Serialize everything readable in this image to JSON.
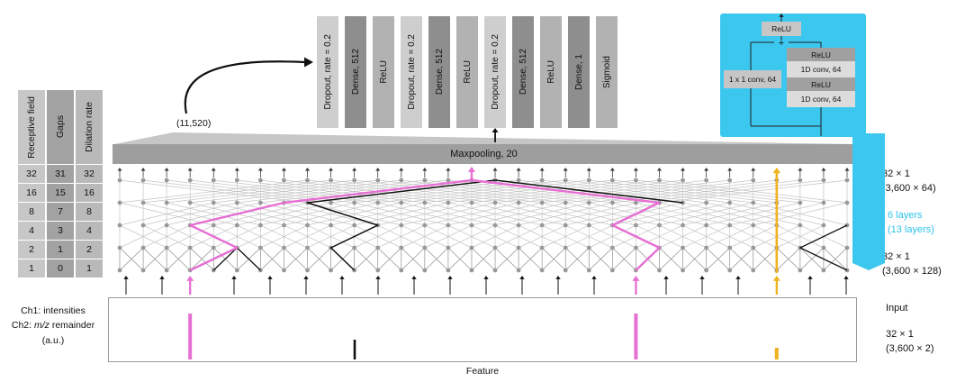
{
  "colors": {
    "cyan": "#3cc7ef",
    "magenta": "#e66fd3",
    "yellow": "#eeb31e",
    "mesh": "#c5c5c5",
    "node": "#999999",
    "ink": "#111111"
  },
  "table": {
    "headers": [
      "Receptive field",
      "Gaps",
      "Dilation rate"
    ],
    "rows": [
      [
        "32",
        "31",
        "32"
      ],
      [
        "16",
        "15",
        "16"
      ],
      [
        "8",
        "7",
        "8"
      ],
      [
        "4",
        "3",
        "4"
      ],
      [
        "2",
        "1",
        "2"
      ],
      [
        "1",
        "0",
        "1"
      ]
    ]
  },
  "dense_head": {
    "flatten_label": "(11,520)",
    "layers": [
      "Dropout, rate = 0.2",
      "Dense, 512",
      "ReLU",
      "Dropout, rate = 0.2",
      "Dense, 512",
      "ReLU",
      "Dropout, rate = 0.2",
      "Dense, 512",
      "ReLU",
      "Dense, 1",
      "Sigmoid"
    ]
  },
  "residual_block": {
    "output_relu": "ReLU",
    "plus": "+",
    "shortcut": "1 x 1 conv, 64",
    "stack": [
      "ReLU",
      "1D conv, 64",
      "ReLU",
      "1D conv, 64"
    ]
  },
  "maxpool": {
    "label": "Maxpooling, 20"
  },
  "network": {
    "columns": 32,
    "node_rows": 5,
    "dilations": [
      8,
      4,
      2,
      1
    ]
  },
  "right_labels": {
    "top_shape": "32 × 1",
    "top_detail": "(3,600 × 64)",
    "mid_layers": "6 layers",
    "mid_layers_alt": "(13 layers)",
    "bottom_shape": "32 × 1",
    "bottom_detail": "(3,600 × 128)"
  },
  "input_panel": {
    "ch1": "Ch1: intensities",
    "ch2_prefix": "Ch2: ",
    "ch2_italic": "m/z",
    "ch2_suffix": " remainder",
    "unit": "(a.u.)",
    "label": "Input",
    "shape": "32 × 1",
    "detail": "(3,600 × 2)",
    "axis_label": "Feature"
  }
}
